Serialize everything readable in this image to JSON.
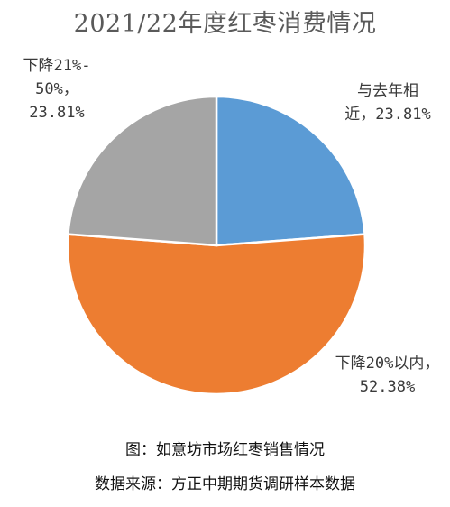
{
  "chart_data": {
    "type": "pie",
    "title": "2021/22年度红枣消费情况",
    "slices": [
      {
        "label": "与去年相近，23.81%",
        "value": 23.81,
        "color": "#5b9bd5"
      },
      {
        "label": "下降20%以内，52.38%",
        "value": 52.38,
        "color": "#ed7d31"
      },
      {
        "label": "下降21%-50%，23.81%",
        "value": 23.81,
        "color": "#a5a5a5"
      }
    ],
    "labels_display": {
      "top_right": "与去年相\n近，23.81%",
      "bottom_right": "下降20%以内，\n52.38%",
      "top_left": "下降21%-\n50%，\n23.81%"
    }
  },
  "captions": {
    "figure": "图：如意坊市场红枣销售情况",
    "source": "数据来源：方正中期期货调研样本数据"
  }
}
